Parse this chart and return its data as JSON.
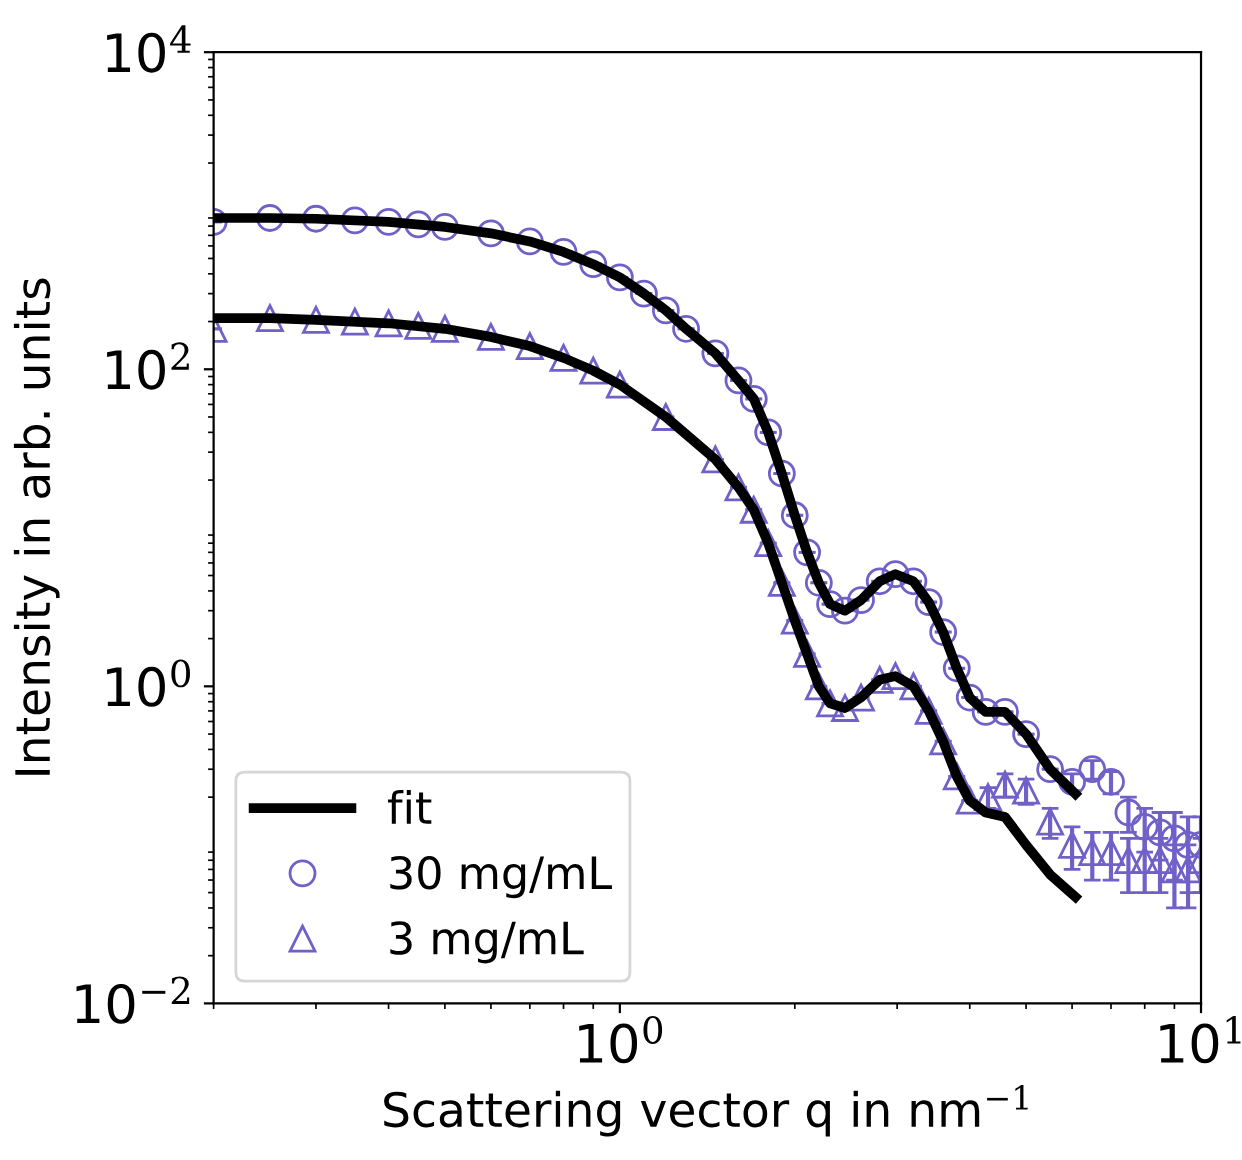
{
  "chart_data": {
    "type": "scatter",
    "xlabel": "Scattering vector q in nm$^{−1}$",
    "ylabel": "Intensity in arb. units",
    "log": "xy",
    "grid": false,
    "legend": "bottom left",
    "xlim": [
      0.2,
      10
    ],
    "xticks": [
      {
        "value": 1,
        "label": "10$^{0}$"
      },
      {
        "value": 10,
        "label": "10$^{1}$"
      }
    ],
    "ylim": [
      0.01,
      10000
    ],
    "yticks": [
      {
        "value": 0.01,
        "label": "10$^{−2}$"
      },
      {
        "value": 1,
        "label": "10$^{0}$"
      },
      {
        "value": 100,
        "label": "10$^{2}$"
      },
      {
        "value": 10000,
        "label": "10$^{4}$"
      }
    ],
    "series": [
      {
        "name": "fit",
        "type": "line",
        "color": "#000000",
        "marker": "none",
        "line_style": "solid",
        "x": [
          0.2,
          0.25,
          0.3,
          0.4,
          0.5,
          0.6,
          0.7,
          0.8,
          0.9,
          1.0,
          1.1,
          1.2,
          1.3,
          1.46,
          1.6,
          1.7,
          1.8,
          1.9,
          2.0,
          2.1,
          2.2,
          2.3,
          2.44,
          2.6,
          2.8,
          2.98,
          3.2,
          3.4,
          3.6,
          3.8,
          4.0,
          4.26,
          4.6,
          5.0,
          5.5,
          6.08
        ],
        "values": [
          900,
          900,
          890,
          850,
          790,
          720,
          640,
          550,
          460,
          380,
          300,
          235,
          180,
          126,
          85,
          65,
          40,
          22,
          12,
          7,
          4.5,
          3.3,
          3.0,
          3.5,
          4.6,
          5.1,
          4.6,
          3.4,
          2.2,
          1.3,
          0.85,
          0.69,
          0.69,
          0.5,
          0.3,
          0.21
        ]
      },
      {
        "type": "line",
        "color": "#000000",
        "marker": "none",
        "line_style": "solid",
        "x": [
          0.2,
          0.25,
          0.3,
          0.4,
          0.5,
          0.6,
          0.7,
          0.8,
          0.9,
          1.0,
          1.2,
          1.46,
          1.6,
          1.7,
          1.8,
          1.9,
          2.0,
          2.1,
          2.2,
          2.3,
          2.44,
          2.6,
          2.8,
          2.98,
          3.2,
          3.4,
          3.6,
          3.8,
          4.0,
          4.26,
          4.6,
          5.0,
          5.5,
          6.08
        ],
        "values": [
          210,
          210,
          205,
          195,
          180,
          160,
          140,
          118,
          98,
          80,
          50,
          27,
          18,
          13,
          8,
          4.5,
          2.6,
          1.6,
          1.0,
          0.78,
          0.73,
          0.85,
          1.1,
          1.16,
          1.0,
          0.7,
          0.45,
          0.27,
          0.19,
          0.16,
          0.15,
          0.1,
          0.065,
          0.047
        ]
      },
      {
        "name": "30 mg/mL",
        "color": "#7060c8",
        "marker": "circle",
        "x": [
          0.2,
          0.25,
          0.3,
          0.35,
          0.4,
          0.45,
          0.5,
          0.6,
          0.7,
          0.8,
          0.9,
          1.0,
          1.1,
          1.2,
          1.3,
          1.46,
          1.6,
          1.7,
          1.8,
          1.9,
          2.0,
          2.1,
          2.2,
          2.3,
          2.44,
          2.6,
          2.8,
          2.98,
          3.2,
          3.4,
          3.6,
          3.8,
          4.0,
          4.26,
          4.6,
          5.0,
          5.5,
          6.0,
          6.5,
          7.0,
          7.5,
          8.0,
          8.5,
          9.0,
          9.5,
          10.0
        ],
        "values": [
          850,
          900,
          890,
          870,
          850,
          820,
          790,
          720,
          640,
          550,
          460,
          380,
          300,
          235,
          180,
          126,
          85,
          65,
          40,
          22,
          12,
          7,
          4.5,
          3.3,
          3.0,
          3.5,
          4.6,
          5.1,
          4.6,
          3.4,
          2.2,
          1.3,
          0.85,
          0.69,
          0.69,
          0.5,
          0.3,
          0.25,
          0.3,
          0.25,
          0.16,
          0.13,
          0.12,
          0.11,
          0.1,
          0.1
        ],
        "errors": [
          null,
          null,
          null,
          null,
          null,
          null,
          null,
          null,
          null,
          null,
          null,
          null,
          null,
          null,
          null,
          null,
          null,
          null,
          null,
          null,
          null,
          null,
          null,
          null,
          null,
          null,
          null,
          null,
          null,
          null,
          null,
          null,
          null,
          null,
          null,
          null,
          null,
          0.03,
          0.04,
          0.04,
          0.04,
          0.04,
          0.04,
          0.05,
          0.05,
          0.05
        ]
      },
      {
        "name": "3 mg/mL",
        "color": "#7060c8",
        "marker": "triangle",
        "x": [
          0.2,
          0.25,
          0.3,
          0.35,
          0.4,
          0.45,
          0.5,
          0.6,
          0.7,
          0.8,
          0.9,
          1.0,
          1.2,
          1.46,
          1.6,
          1.7,
          1.8,
          1.9,
          2.0,
          2.1,
          2.2,
          2.3,
          2.44,
          2.6,
          2.8,
          2.98,
          3.2,
          3.4,
          3.6,
          3.8,
          4.0,
          4.3,
          4.6,
          5.0,
          5.5,
          6.0,
          6.5,
          7.0,
          7.5,
          8.0,
          8.5,
          9.0,
          9.5,
          10.0
        ],
        "values": [
          180,
          210,
          205,
          200,
          195,
          188,
          180,
          160,
          140,
          118,
          98,
          80,
          50,
          27,
          18,
          13,
          8,
          4.5,
          2.6,
          1.6,
          1.0,
          0.78,
          0.73,
          0.85,
          1.1,
          1.16,
          1.0,
          0.7,
          0.45,
          0.27,
          0.19,
          0.2,
          0.24,
          0.22,
          0.14,
          0.1,
          0.09,
          0.09,
          0.08,
          0.08,
          0.08,
          0.07,
          0.07,
          0.08
        ],
        "errors": [
          null,
          null,
          null,
          null,
          null,
          null,
          null,
          null,
          null,
          null,
          null,
          null,
          null,
          null,
          null,
          null,
          null,
          null,
          null,
          null,
          null,
          null,
          null,
          null,
          null,
          null,
          null,
          null,
          null,
          null,
          null,
          0.03,
          0.04,
          0.04,
          0.03,
          0.03,
          0.03,
          0.03,
          0.03,
          0.03,
          0.03,
          0.03,
          0.03,
          0.03
        ]
      }
    ]
  }
}
